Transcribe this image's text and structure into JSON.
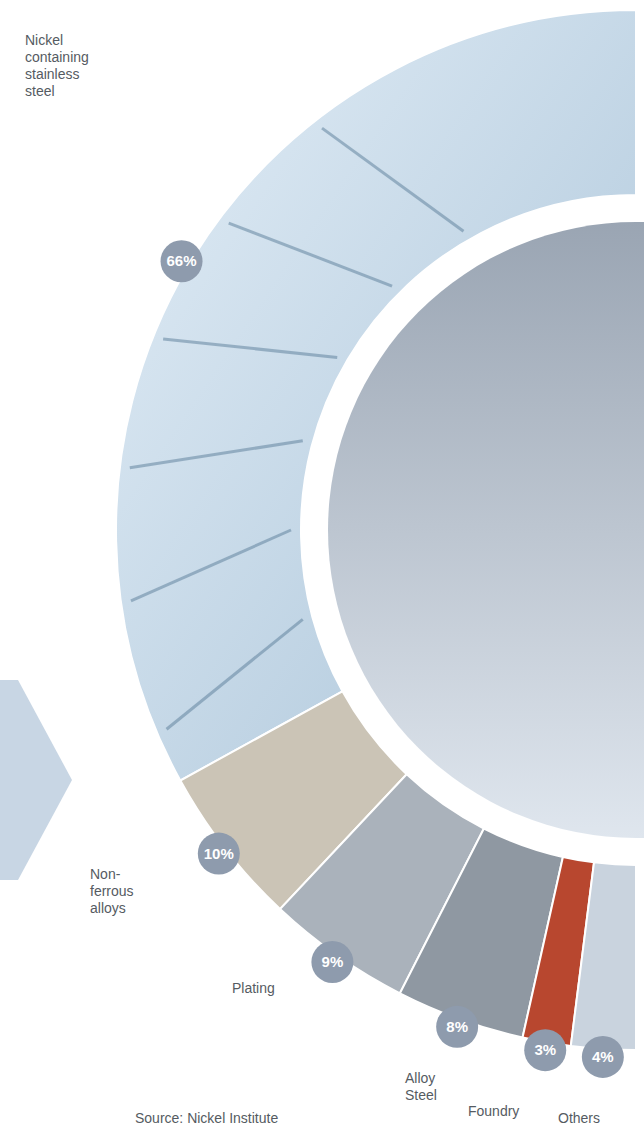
{
  "chart_data": {
    "type": "pie",
    "categories": [
      "Nickel containing stainless steel",
      "Non-ferrous alloys",
      "Plating",
      "Alloy Steel",
      "Foundry",
      "Others"
    ],
    "values": [
      66,
      10,
      9,
      8,
      3,
      4
    ],
    "value_labels": [
      "66%",
      "10%",
      "9%",
      "8%",
      "3%",
      "4%"
    ],
    "colors": [
      "#bcd2e4",
      "#cbc4b6",
      "#aab2bb",
      "#8f98a2",
      "#b8472f",
      "#c9d3de"
    ],
    "data_labels": true,
    "source": "Source: Nickel Institute"
  }
}
